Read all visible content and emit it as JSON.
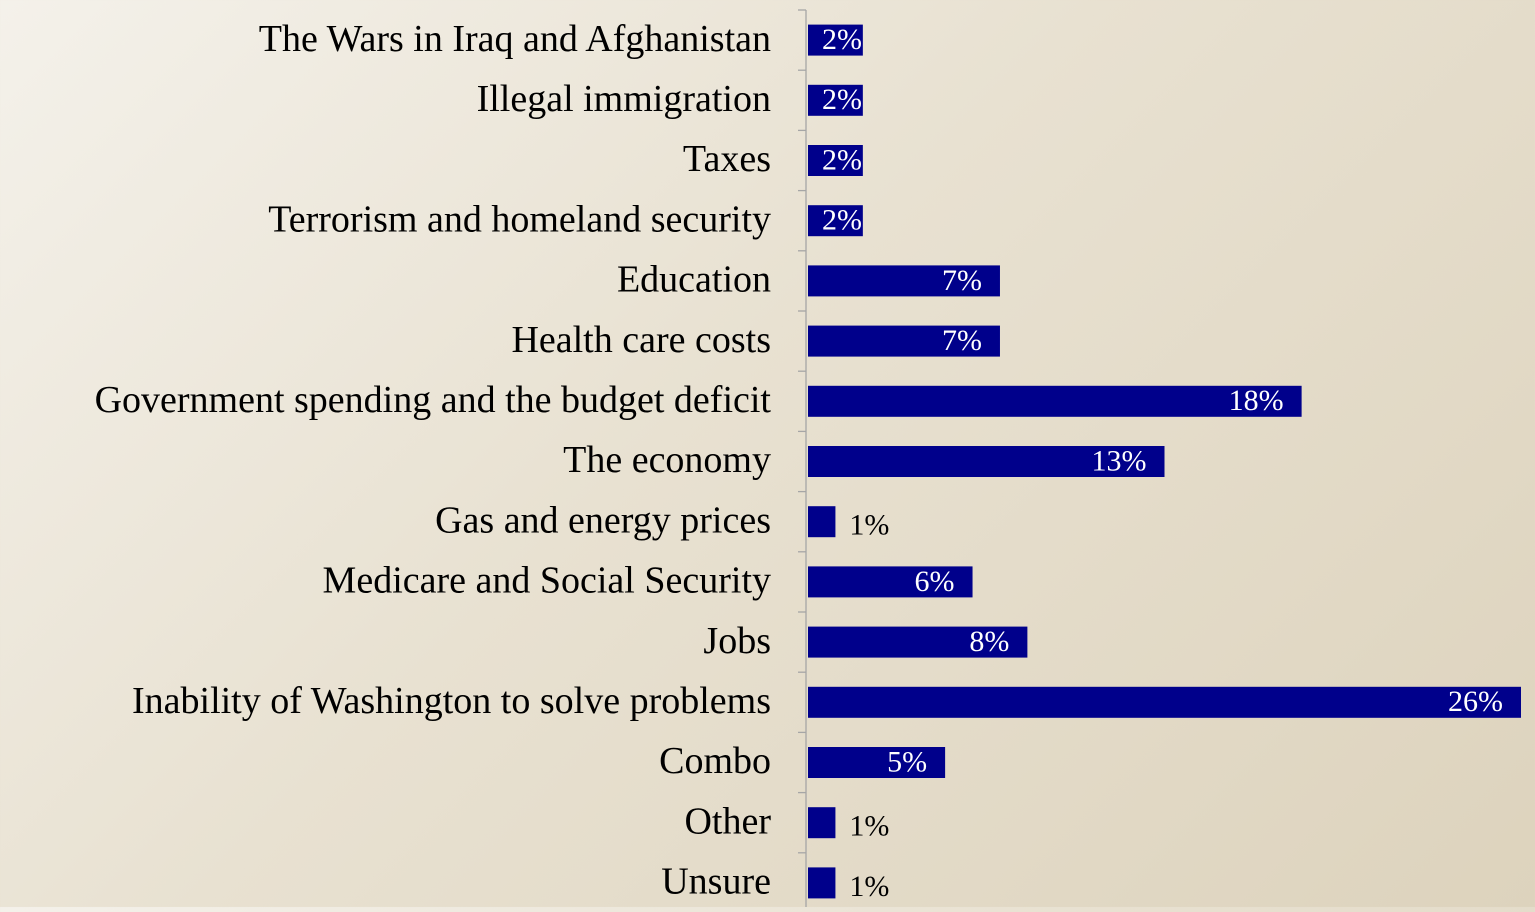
{
  "chart_data": {
    "type": "bar",
    "orientation": "horizontal",
    "title": "",
    "xlabel": "",
    "ylabel": "",
    "categories": [
      "The Wars in Iraq and Afghanistan",
      "Illegal immigration",
      "Taxes",
      "Terrorism and homeland security",
      "Education",
      "Health care costs",
      "Government spending and the budget deficit",
      "The economy",
      "Gas and energy prices",
      "Medicare and Social Security",
      "Jobs",
      "Inability of Washington to solve problems",
      "Combo",
      "Other",
      "Unsure"
    ],
    "values": [
      2,
      2,
      2,
      2,
      7,
      7,
      18,
      13,
      1,
      6,
      8,
      26,
      5,
      1,
      1
    ],
    "data_labels": [
      "2%",
      "2%",
      "2%",
      "2%",
      "7%",
      "7%",
      "18%",
      "13%",
      "1%",
      "6%",
      "8%",
      "26%",
      "5%",
      "1%",
      "1%"
    ],
    "xlim": [
      0,
      26
    ],
    "grid": false,
    "legend": "none",
    "colors": {
      "bar": "#00008b",
      "label_inside": "#ffffff",
      "label_outside": "#000000",
      "axis": "#a6a6a6",
      "category_text": "#000000"
    }
  }
}
